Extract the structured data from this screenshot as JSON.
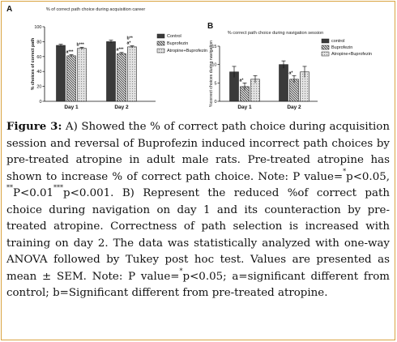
{
  "chart_data": [
    {
      "panel_label": "A",
      "type": "bar",
      "title": "% of correct path choice during acquisition career",
      "ylabel": "% choices of correct path",
      "ylim": [
        0,
        100
      ],
      "yticks": [
        0,
        20,
        40,
        60,
        80,
        100
      ],
      "categories": [
        "Day 1",
        "Day 2"
      ],
      "legend_position": "right",
      "series": [
        {
          "name": "Control",
          "pattern": "dark",
          "values": [
            75,
            80
          ],
          "errors": [
            1.5,
            2
          ],
          "annotations": [
            "",
            ""
          ]
        },
        {
          "name": "Buprofezin",
          "pattern": "hatched",
          "values": [
            61,
            64
          ],
          "errors": [
            1.5,
            1.5
          ],
          "annotations": [
            "a***",
            "a***"
          ]
        },
        {
          "name": "Atropine+Buprofezin",
          "pattern": "light",
          "values": [
            71,
            73
          ],
          "errors": [
            1.5,
            1.5
          ],
          "annotations": [
            "b***",
            "b**\na*"
          ]
        }
      ]
    },
    {
      "panel_label": "B",
      "type": "bar",
      "title": "% correct path choice during navigation session",
      "ylabel": "%correct choices during navigation",
      "ylim": [
        0,
        15
      ],
      "yticks": [
        0,
        5,
        10,
        15
      ],
      "categories": [
        "Day 1",
        "Day 2"
      ],
      "legend_position": "right",
      "series": [
        {
          "name": "control",
          "pattern": "dark",
          "values": [
            8,
            10
          ],
          "errors": [
            1.5,
            1
          ]
        },
        {
          "name": "Buprofezin",
          "pattern": "hatched",
          "values": [
            4,
            6
          ],
          "errors": [
            1,
            1
          ],
          "annotations": [
            "a*",
            "a*"
          ]
        },
        {
          "name": "Atropine+Buprofezin",
          "pattern": "light",
          "values": [
            6,
            8
          ],
          "errors": [
            1,
            1.5
          ],
          "annotations": [
            "",
            ""
          ]
        }
      ]
    }
  ],
  "caption": {
    "label": "Figure 3:",
    "t1": " A) Showed the % of correct path choice during acquisition session and reversal of Buprofezin induced incorrect path choices by pre-treated atropine in adult male rats. Pre-treated atropine has shown to increase % of correct path choice. Note: P value=",
    "s1": "*",
    "t2": "p<0.05, ",
    "s2": "**",
    "t3": "P<0.01",
    "s3": "***",
    "t4": "p<0.001. B) Represent the reduced %of correct path choice during navigation on day 1 and its counteraction by pre-treated atropine. Correctness of path selection is increased with training on day 2. The data was statistically analyzed with one-way ANOVA followed by Tukey post hoc test. Values are presented as mean ± SEM. Note: P value=",
    "s4": "*",
    "t5": "p<0.05; a=significant different from control; b=Significant different from pre-treated atropine."
  }
}
